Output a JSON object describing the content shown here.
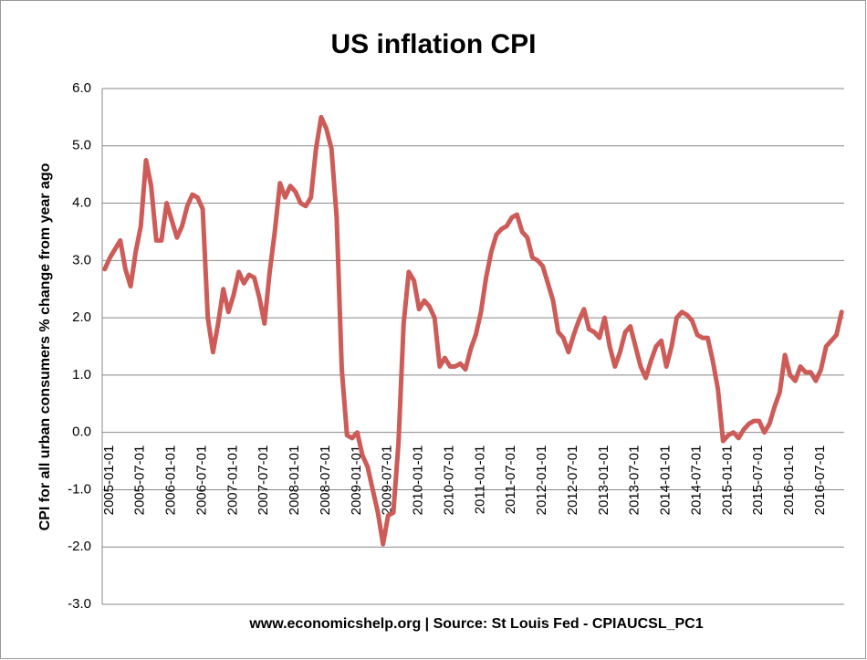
{
  "chart_data": {
    "type": "line",
    "title": "US inflation CPI",
    "y_label": "CPI for all urban consumers % change from year ago",
    "footer": "www.economicshelp.org | Source: St Louis Fed - CPIAUCSL_PC1",
    "color": "#cd5b57",
    "grid": true,
    "ylim": [
      -3,
      6
    ],
    "yticks": [
      {
        "value": -3,
        "label": "-3.0"
      },
      {
        "value": -2,
        "label": "-2.0"
      },
      {
        "value": -1,
        "label": "-1.0"
      },
      {
        "value": 0,
        "label": "0.0"
      },
      {
        "value": 1,
        "label": "1.0"
      },
      {
        "value": 2,
        "label": "2.0"
      },
      {
        "value": 3,
        "label": "3.0"
      },
      {
        "value": 4,
        "label": "4.0"
      },
      {
        "value": 5,
        "label": "5.0"
      },
      {
        "value": 6,
        "label": "6.0"
      }
    ],
    "categories": [
      "2005-01-01",
      null,
      null,
      null,
      null,
      null,
      "2005-07-01",
      null,
      null,
      null,
      null,
      null,
      "2006-01-01",
      null,
      null,
      null,
      null,
      null,
      "2006-07-01",
      null,
      null,
      null,
      null,
      null,
      "2007-01-01",
      null,
      null,
      null,
      null,
      null,
      "2007-07-01",
      null,
      null,
      null,
      null,
      null,
      "2008-01-01",
      null,
      null,
      null,
      null,
      null,
      "2008-07-01",
      null,
      null,
      null,
      null,
      null,
      "2009-01-01",
      null,
      null,
      null,
      null,
      null,
      "2009-07-01",
      null,
      null,
      null,
      null,
      null,
      "2010-01-01",
      null,
      null,
      null,
      null,
      null,
      "2010-07-01",
      null,
      null,
      null,
      null,
      null,
      "2011-01-01",
      null,
      null,
      null,
      null,
      null,
      "2011-07-01",
      null,
      null,
      null,
      null,
      null,
      "2012-01-01",
      null,
      null,
      null,
      null,
      null,
      "2012-07-01",
      null,
      null,
      null,
      null,
      null,
      "2013-01-01",
      null,
      null,
      null,
      null,
      null,
      "2013-07-01",
      null,
      null,
      null,
      null,
      null,
      "2014-01-01",
      null,
      null,
      null,
      null,
      null,
      "2014-07-01",
      null,
      null,
      null,
      null,
      null,
      "2015-01-01",
      null,
      null,
      null,
      null,
      null,
      "2015-07-01",
      null,
      null,
      null,
      null,
      null,
      "2016-01-01",
      null,
      null,
      null,
      null,
      null,
      "2016-07-01",
      null,
      null,
      null,
      null,
      null
    ],
    "values": [
      2.85,
      3.05,
      3.2,
      3.35,
      2.85,
      2.55,
      3.15,
      3.6,
      4.75,
      4.3,
      3.35,
      3.35,
      4.0,
      3.7,
      3.4,
      3.6,
      3.95,
      4.15,
      4.1,
      3.9,
      2.0,
      1.4,
      1.9,
      2.5,
      2.1,
      2.4,
      2.8,
      2.6,
      2.75,
      2.7,
      2.35,
      1.9,
      2.8,
      3.5,
      4.35,
      4.1,
      4.3,
      4.2,
      4.0,
      3.95,
      4.1,
      4.95,
      5.5,
      5.3,
      4.95,
      3.75,
      1.1,
      -0.05,
      -0.1,
      0.0,
      -0.4,
      -0.6,
      -1.0,
      -1.4,
      -1.95,
      -1.45,
      -1.4,
      -0.2,
      1.9,
      2.8,
      2.65,
      2.15,
      2.3,
      2.2,
      2.0,
      1.15,
      1.3,
      1.15,
      1.15,
      1.2,
      1.1,
      1.45,
      1.7,
      2.1,
      2.7,
      3.15,
      3.45,
      3.55,
      3.6,
      3.75,
      3.8,
      3.5,
      3.4,
      3.05,
      3.0,
      2.9,
      2.6,
      2.3,
      1.75,
      1.65,
      1.4,
      1.7,
      1.95,
      2.15,
      1.8,
      1.75,
      1.65,
      2.0,
      1.5,
      1.15,
      1.4,
      1.75,
      1.85,
      1.5,
      1.15,
      0.95,
      1.25,
      1.5,
      1.6,
      1.15,
      1.5,
      2.0,
      2.1,
      2.05,
      1.95,
      1.7,
      1.65,
      1.65,
      1.25,
      0.75,
      -0.15,
      -0.05,
      0.0,
      -0.1,
      0.05,
      0.15,
      0.2,
      0.2,
      0.0,
      0.15,
      0.45,
      0.7,
      1.35,
      1.0,
      0.9,
      1.15,
      1.05,
      1.05,
      0.9,
      1.1,
      1.5,
      1.6,
      1.7,
      2.1
    ]
  }
}
